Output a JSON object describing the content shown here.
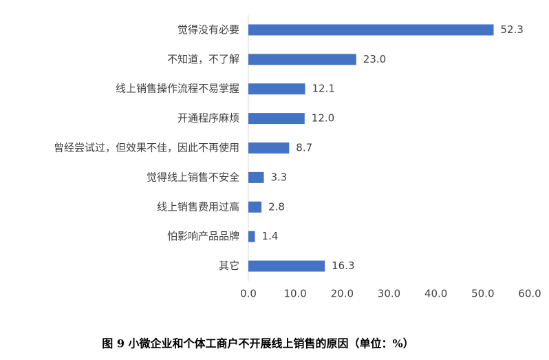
{
  "chart_data": {
    "type": "bar",
    "orientation": "horizontal",
    "title": "图 9  小微企业和个体工商户不开展线上销售的原因（单位：%）",
    "categories": [
      "觉得没有必要",
      "不知道，不了解",
      "线上销售操作流程不易掌握",
      "开通程序麻烦",
      "曾经尝试过，但效果不佳，因此不再使用",
      "觉得线上销售不安全",
      "线上销售费用过高",
      "怕影响产品品牌",
      "其它"
    ],
    "values": [
      52.3,
      23.0,
      12.1,
      12.0,
      8.7,
      3.3,
      2.8,
      1.4,
      16.3
    ],
    "value_labels": [
      "52.3",
      "23.0",
      "12.1",
      "12.0",
      "8.7",
      "3.3",
      "2.8",
      "1.4",
      "16.3"
    ],
    "color": "#4472c4",
    "xlim": [
      0,
      60
    ],
    "xticks": [
      {
        "value": 0,
        "label": "0.0"
      },
      {
        "value": 10,
        "label": "10.0"
      },
      {
        "value": 20,
        "label": "20.0"
      },
      {
        "value": 30,
        "label": "30.0"
      },
      {
        "value": 40,
        "label": "40.0"
      },
      {
        "value": 50,
        "label": "50.0"
      },
      {
        "value": 60,
        "label": "60.0"
      }
    ],
    "grid": false
  }
}
